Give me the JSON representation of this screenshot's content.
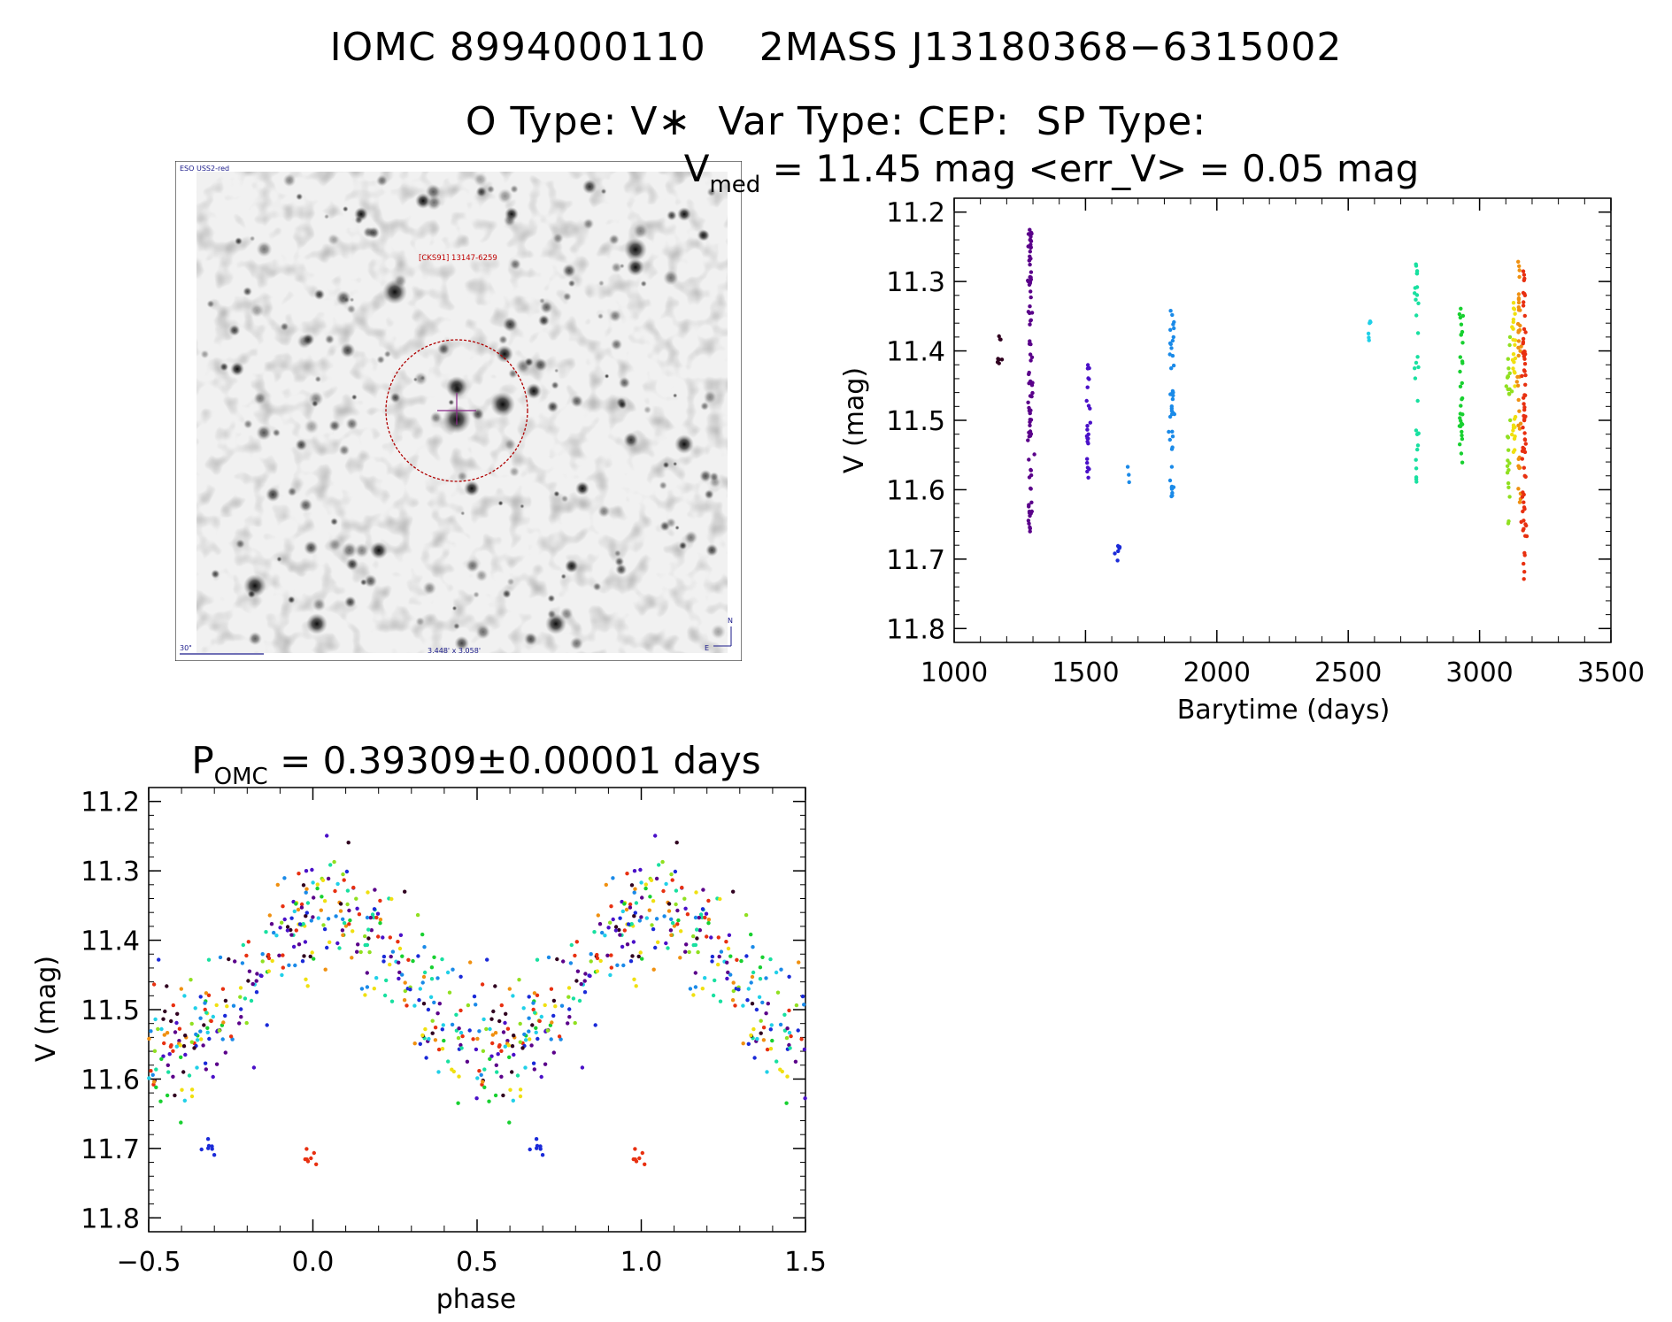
{
  "header": {
    "title_line1": "IOMC 8994000110    2MASS J13180368−6315002",
    "title_line2": "O Type: V∗  Var Type: CEP:  SP Type:"
  },
  "finding_chart": {
    "survey_label": "ESO USS2-red",
    "target_label": "[CKS91] 13147-6259",
    "scale_label": "30\"",
    "fov_label": "3.448' x 3.058'",
    "north_label": "N",
    "east_label": "E"
  },
  "chart_data": [
    {
      "type": "scatter",
      "title_main": "V",
      "title_sub": "med",
      "title_rest": " = 11.45 mag <err_V> = 0.05 mag",
      "xlabel": "Barytime (days)",
      "ylabel": "V (mag)",
      "xlim": [
        1000,
        3500
      ],
      "ylim": [
        11.82,
        11.18
      ],
      "y_inverted": true,
      "xticks": [
        1000,
        1500,
        2000,
        2500,
        3000,
        3500
      ],
      "xtick_labels": [
        "1000",
        "1500",
        "2000",
        "2500",
        "3000",
        "3500"
      ],
      "yticks": [
        11.2,
        11.3,
        11.4,
        11.5,
        11.6,
        11.7,
        11.8
      ],
      "ytick_labels": [
        "11.2",
        "11.3",
        "11.4",
        "11.5",
        "11.6",
        "11.7",
        "11.8"
      ],
      "grid": false,
      "groups": [
        {
          "color": "#300020",
          "x": 1170,
          "v_min": 11.35,
          "v_max": 11.42,
          "n": 8
        },
        {
          "color": "#5a008a",
          "x": 1290,
          "v_min": 11.22,
          "v_max": 11.67,
          "n": 90
        },
        {
          "color": "#4a10c8",
          "x": 1510,
          "v_min": 11.42,
          "v_max": 11.6,
          "n": 24
        },
        {
          "color": "#1a2ad8",
          "x": 1625,
          "v_min": 11.68,
          "v_max": 11.71,
          "n": 8
        },
        {
          "color": "#1a8ae8",
          "x": 1665,
          "v_min": 11.56,
          "v_max": 11.59,
          "n": 3
        },
        {
          "color": "#1a8ae8",
          "x": 1830,
          "v_min": 11.34,
          "v_max": 11.62,
          "n": 45
        },
        {
          "color": "#20d0e8",
          "x": 2580,
          "v_min": 11.35,
          "v_max": 11.39,
          "n": 6
        },
        {
          "color": "#18e0a0",
          "x": 2760,
          "v_min": 11.27,
          "v_max": 11.59,
          "n": 30
        },
        {
          "color": "#18d030",
          "x": 2930,
          "v_min": 11.33,
          "v_max": 11.57,
          "n": 32
        },
        {
          "color": "#90e020",
          "x": 3110,
          "v_min": 11.36,
          "v_max": 11.65,
          "n": 28
        },
        {
          "color": "#f0e010",
          "x": 3130,
          "v_min": 11.33,
          "v_max": 11.55,
          "n": 30
        },
        {
          "color": "#f09010",
          "x": 3150,
          "v_min": 11.27,
          "v_max": 11.63,
          "n": 40
        },
        {
          "color": "#e83010",
          "x": 3170,
          "v_min": 11.28,
          "v_max": 11.73,
          "n": 70
        }
      ]
    },
    {
      "type": "scatter",
      "title_main": "P",
      "title_sub": "OMC",
      "title_rest": " = 0.39309±0.00001 days",
      "period_days": 0.39309,
      "period_err_days": 1e-05,
      "xlabel": "phase",
      "ylabel": "V (mag)",
      "xlim": [
        -0.5,
        1.5
      ],
      "ylim": [
        11.82,
        11.18
      ],
      "y_inverted": true,
      "xticks": [
        -0.5,
        0.0,
        0.5,
        1.0,
        1.5
      ],
      "xtick_labels": [
        "−0.5",
        "0.0",
        "0.5",
        "1.0",
        "1.5"
      ],
      "yticks": [
        11.2,
        11.3,
        11.4,
        11.5,
        11.6,
        11.7,
        11.8
      ],
      "ytick_labels": [
        "11.2",
        "11.3",
        "11.4",
        "11.5",
        "11.6",
        "11.7",
        "11.8"
      ],
      "grid": false,
      "light_curve": {
        "max_phase": 0.05,
        "min_phase": 0.47,
        "v_max": 11.35,
        "v_min": 11.56
      },
      "colors": [
        "#300020",
        "#5a008a",
        "#4a10c8",
        "#1a2ad8",
        "#1a8ae8",
        "#20d0e8",
        "#18e0a0",
        "#18d030",
        "#90e020",
        "#f0e010",
        "#f09010",
        "#e83010"
      ],
      "outlier_clusters": [
        {
          "color": "#1a2ad8",
          "phase": 0.66,
          "v": 11.695
        },
        {
          "color": "#e83010",
          "phase": 0.97,
          "v": 11.72
        }
      ]
    }
  ]
}
